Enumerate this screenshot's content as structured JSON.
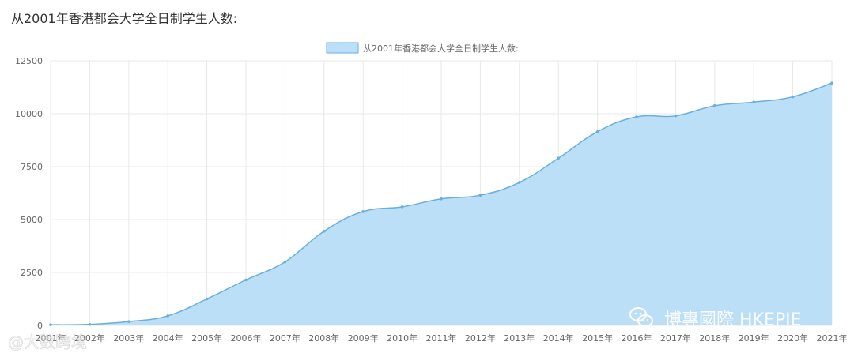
{
  "page": {
    "title": "从2001年香港都会大学全日制学生人数:"
  },
  "chart_data": {
    "type": "area",
    "title": "从2001年香港都会大学全日制学生人数:",
    "legend": {
      "label": "从2001年香港都会大学全日制学生人数:",
      "placement": "top-center"
    },
    "categories": [
      "2001年",
      "2002年",
      "2003年",
      "2004年",
      "2005年",
      "2006年",
      "2007年",
      "2008年",
      "2009年",
      "2010年",
      "2011年",
      "2012年",
      "2013年",
      "2014年",
      "2015年",
      "2016年",
      "2017年",
      "2018年",
      "2019年",
      "2020年",
      "2021年"
    ],
    "series": [
      {
        "name": "从2001年香港都会大学全日制学生人数:",
        "values": [
          30,
          50,
          180,
          450,
          1250,
          2150,
          3000,
          4450,
          5380,
          5600,
          5980,
          6150,
          6750,
          7900,
          9150,
          9850,
          9900,
          10380,
          10550,
          10800,
          11450
        ]
      }
    ],
    "ylim": [
      0,
      12500
    ],
    "yticks": [
      0,
      2500,
      5000,
      7500,
      10000,
      12500
    ],
    "grid": true,
    "colors": {
      "fill": "#bbdff7",
      "line": "#6aaedc",
      "point": "#6aaedc",
      "grid": "#e8e8e8"
    }
  },
  "watermarks": {
    "left": "@大数跨境",
    "right": "博專國際 HKEPIE"
  }
}
